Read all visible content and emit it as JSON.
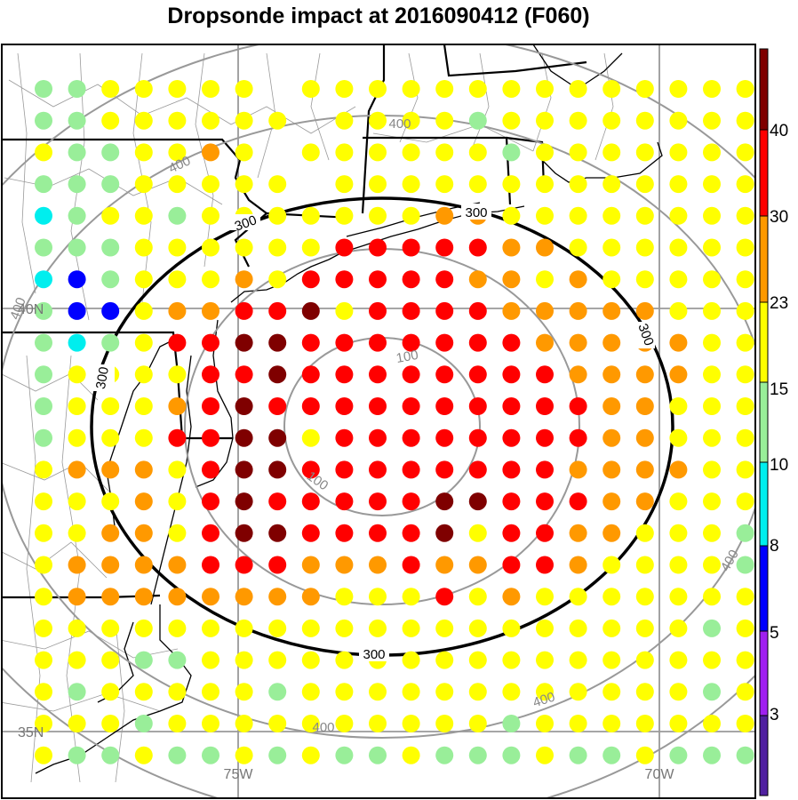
{
  "title": "Dropsonde impact at 2016090412 (F060)",
  "map": {
    "lon_labels": [
      "75W",
      "70W"
    ],
    "lat_labels": [
      "35N",
      "40N"
    ],
    "contour_labels_black": [
      "300",
      "300",
      "300",
      "300",
      "300"
    ],
    "contour_labels_gray": [
      "100",
      "100",
      "400",
      "400",
      "400",
      "400",
      "400",
      "400"
    ]
  },
  "colorbar": {
    "labels": [
      "40",
      "30",
      "23",
      "15",
      "10",
      "8",
      "5",
      "3"
    ],
    "colors": [
      "#7f0000",
      "#ff0000",
      "#ff9900",
      "#ffff00",
      "#99ee99",
      "#00eeee",
      "#0000ff",
      "#a020f0",
      "#5020a0"
    ]
  },
  "chart_data": {
    "type": "scatter",
    "title": "Dropsonde impact at 2016090412 (F060)",
    "levels": [
      3,
      5,
      8,
      10,
      15,
      23,
      30,
      40
    ],
    "colors": {
      "k": "#7f0000",
      "r": "#ff0000",
      "o": "#ff9900",
      "y": "#ffff00",
      "g": "#99ee99",
      "c": "#00eeee",
      "b": "#0000ff"
    },
    "grid_rows": [
      "ggyyyyy.yyyyyyyyyyyyyy",
      "ggyyyyyy.yyyygyyyyyyyy",
      "yggyyoy.yyyyyygyyyyyyy",
      "gggyyyyy.yyyyyyyyyyyyy",
      "cgyygyyyyyyyooyyyyyyyy",
      "gggyyyyyyrrrrrooyyyyyy",
      "cbgyyyoyrrrrrooyoyyyyy",
      "gbbyoorrkyrrrroooooyyy",
      "gcgyrrkkrrrrrrroooooyy",
      "gyyyyrrkrrrrrrrrooooyy",
      "gyyyorkrrrrrrrrrrooyyy",
      "gyyyrrkkyrrrrrrrrooyyy",
      "yoooyrkkrrrrrrrrooooyy",
      "yyyoyrkrrrrrkkrrrooyyy",
      "yyooyrkkrrrrkyrrooyyyg",
      "yoooorrroooroorroyyyyg",
      "yooooooooyyyryoyyyyyyy",
      "yyyyyyyyyyyyyyyyyyyygy",
      "yyyggyyyyyyyyyyyyyyyyy",
      "ygyyyyygyyyyyyyyyyyygy",
      "yyygyyyyyyyyyygyyyyyyy",
      "yggyggygyggygggyggyggg"
    ]
  }
}
